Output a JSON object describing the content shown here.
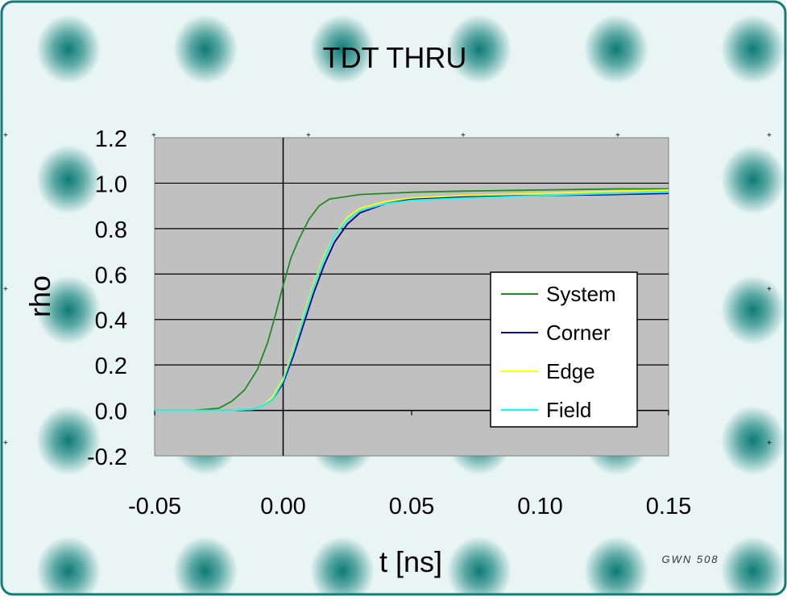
{
  "colors": {
    "frame_border": "#0f7d78",
    "tile_dark": "#0e7a75",
    "tile_light": "#e8f5f4",
    "plot_bg": "#c0c0c0",
    "system": "#228b22",
    "corner": "#000080",
    "edge": "#ffff00",
    "field": "#00ffff"
  },
  "watermark": "GWN 508",
  "chart_data": {
    "type": "line",
    "title": "TDT THRU",
    "xlabel": "t [ns]",
    "ylabel": "rho",
    "xlim": [
      -0.05,
      0.15
    ],
    "ylim": [
      -0.2,
      1.2
    ],
    "xticks": [
      "-0.05",
      "0.00",
      "0.05",
      "0.10",
      "0.15"
    ],
    "yticks": [
      "1.2",
      "1.0",
      "0.8",
      "0.6",
      "0.4",
      "0.2",
      "0.0",
      "-0.2"
    ],
    "grid": "horizontal",
    "legend_position": "lower-right",
    "series": [
      {
        "name": "System",
        "color": "#228b22",
        "x": [
          -0.05,
          -0.035,
          -0.025,
          -0.02,
          -0.015,
          -0.01,
          -0.006,
          -0.003,
          0.0,
          0.003,
          0.006,
          0.01,
          0.014,
          0.018,
          0.024,
          0.03,
          0.04,
          0.05,
          0.07,
          0.1,
          0.13,
          0.15
        ],
        "y": [
          0.0,
          0.0,
          0.01,
          0.04,
          0.09,
          0.18,
          0.3,
          0.42,
          0.55,
          0.67,
          0.75,
          0.84,
          0.9,
          0.93,
          0.94,
          0.95,
          0.955,
          0.96,
          0.965,
          0.97,
          0.975,
          0.975
        ]
      },
      {
        "name": "Corner",
        "color": "#000080",
        "x": [
          -0.05,
          -0.02,
          -0.012,
          -0.008,
          -0.004,
          0.0,
          0.004,
          0.008,
          0.012,
          0.016,
          0.02,
          0.025,
          0.03,
          0.04,
          0.05,
          0.07,
          0.1,
          0.13,
          0.15
        ],
        "y": [
          0.0,
          0.0,
          0.005,
          0.02,
          0.05,
          0.12,
          0.24,
          0.38,
          0.52,
          0.64,
          0.74,
          0.82,
          0.87,
          0.91,
          0.93,
          0.94,
          0.945,
          0.95,
          0.955
        ]
      },
      {
        "name": "Edge",
        "color": "#ffff00",
        "x": [
          -0.05,
          -0.02,
          -0.012,
          -0.008,
          -0.004,
          0.0,
          0.004,
          0.008,
          0.012,
          0.016,
          0.02,
          0.025,
          0.03,
          0.04,
          0.05,
          0.07,
          0.1,
          0.13,
          0.15
        ],
        "y": [
          0.0,
          0.0,
          0.005,
          0.02,
          0.06,
          0.14,
          0.27,
          0.42,
          0.56,
          0.68,
          0.77,
          0.85,
          0.89,
          0.92,
          0.935,
          0.945,
          0.955,
          0.965,
          0.97
        ]
      },
      {
        "name": "Field",
        "color": "#00ffff",
        "x": [
          -0.05,
          -0.02,
          -0.012,
          -0.008,
          -0.004,
          0.0,
          0.004,
          0.008,
          0.012,
          0.016,
          0.02,
          0.025,
          0.03,
          0.04,
          0.05,
          0.07,
          0.1,
          0.13,
          0.15
        ],
        "y": [
          0.0,
          0.0,
          0.005,
          0.02,
          0.05,
          0.13,
          0.26,
          0.41,
          0.55,
          0.67,
          0.77,
          0.84,
          0.88,
          0.91,
          0.925,
          0.935,
          0.945,
          0.955,
          0.96
        ]
      }
    ]
  }
}
